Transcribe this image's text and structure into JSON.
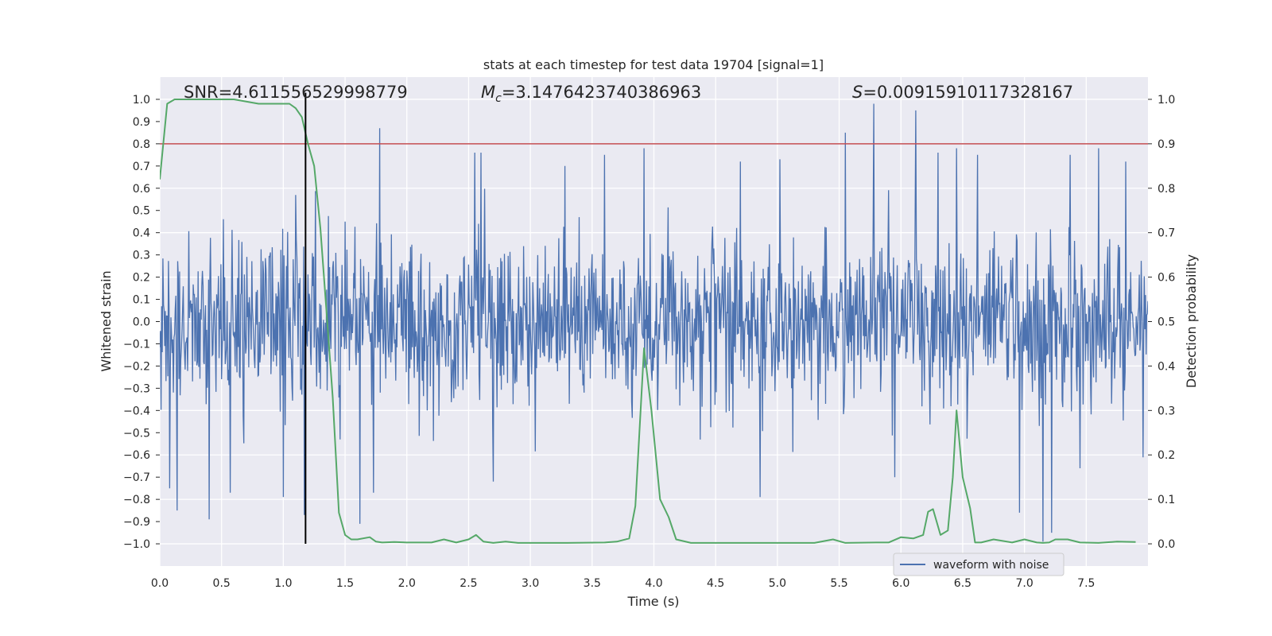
{
  "chart_data": {
    "type": "line",
    "title": "stats at each timestep for test data 19704 [signal=1]",
    "xlabel": "Time (s)",
    "ylabel": "Whitened strain",
    "y2label": "Detection probability",
    "xlim": [
      0.0,
      8.0
    ],
    "ylim": [
      -1.1,
      1.1
    ],
    "y2lim": [
      -0.05,
      1.05
    ],
    "x_ticks": [
      0.0,
      0.5,
      1.0,
      1.5,
      2.0,
      2.5,
      3.0,
      3.5,
      4.0,
      4.5,
      5.0,
      5.5,
      6.0,
      6.5,
      7.0,
      7.5
    ],
    "x_tick_labels": [
      "0.0",
      "0.5",
      "1.0",
      "1.5",
      "2.0",
      "2.5",
      "3.0",
      "3.5",
      "4.0",
      "4.5",
      "5.0",
      "5.5",
      "6.0",
      "6.5",
      "7.0",
      "7.5"
    ],
    "y_ticks": [
      1.0,
      0.9,
      0.8,
      0.7,
      0.6,
      0.5,
      0.4,
      0.3,
      0.2,
      0.1,
      0.0,
      -0.1,
      -0.2,
      -0.3,
      -0.4,
      -0.5,
      -0.6,
      -0.7,
      -0.8,
      -0.9,
      -1.0
    ],
    "y_tick_labels": [
      "1.0",
      "0.9",
      "0.8",
      "0.7",
      "0.6",
      "0.5",
      "0.4",
      "0.3",
      "0.2",
      "0.1",
      "0.0",
      "−0.1",
      "−0.2",
      "−0.3",
      "−0.4",
      "−0.5",
      "−0.6",
      "−0.7",
      "−0.8",
      "−0.9",
      "−1.0"
    ],
    "y2_ticks": [
      0.0,
      0.1,
      0.2,
      0.3,
      0.4,
      0.5,
      0.6,
      0.7,
      0.8,
      0.9,
      1.0
    ],
    "y2_tick_labels": [
      "0.0",
      "0.1",
      "0.2",
      "0.3",
      "0.4",
      "0.5",
      "0.6",
      "0.7",
      "0.8",
      "0.9",
      "1.0"
    ],
    "annotations": {
      "snr": "SNR=4.611556529998779",
      "mc_symbol": "M",
      "mc_sub": "c",
      "mc_value": "=3.1476423740386963",
      "s_symbol": "S",
      "s_value": "=0.00915910117328167"
    },
    "threshold": {
      "value": 0.9,
      "axis": "y2",
      "color": "#c44e52"
    },
    "marker_line": {
      "x": 1.18,
      "color": "#000000"
    },
    "waveform": {
      "name": "waveform with noise",
      "color": "#4c72b0",
      "dt": 0.005,
      "sigma": 0.18,
      "spikes": [
        [
          0.08,
          -0.75
        ],
        [
          0.14,
          -0.85
        ],
        [
          0.4,
          -0.89
        ],
        [
          0.57,
          -0.77
        ],
        [
          1.0,
          -0.79
        ],
        [
          1.17,
          -0.87
        ],
        [
          1.1,
          0.57
        ],
        [
          1.78,
          0.87
        ],
        [
          1.62,
          -0.91
        ],
        [
          1.73,
          -0.77
        ],
        [
          2.55,
          0.76
        ],
        [
          2.6,
          0.76
        ],
        [
          2.7,
          -0.72
        ],
        [
          3.28,
          0.7
        ],
        [
          3.6,
          0.75
        ],
        [
          3.92,
          0.78
        ],
        [
          4.7,
          0.72
        ],
        [
          4.86,
          -0.79
        ],
        [
          5.02,
          0.73
        ],
        [
          5.55,
          0.85
        ],
        [
          5.78,
          0.98
        ],
        [
          5.95,
          -0.7
        ],
        [
          6.12,
          0.95
        ],
        [
          6.3,
          0.76
        ],
        [
          6.45,
          0.78
        ],
        [
          6.96,
          -0.86
        ],
        [
          7.15,
          -0.99
        ],
        [
          7.22,
          -0.95
        ],
        [
          7.37,
          0.75
        ],
        [
          7.6,
          0.78
        ],
        [
          7.82,
          0.72
        ],
        [
          6.62,
          0.75
        ]
      ]
    },
    "probability": {
      "name": "detection probability",
      "color": "#55a868",
      "x": [
        0.0,
        0.06,
        0.12,
        0.2,
        0.4,
        0.6,
        0.8,
        1.0,
        1.05,
        1.1,
        1.15,
        1.2,
        1.25,
        1.3,
        1.35,
        1.4,
        1.45,
        1.5,
        1.55,
        1.6,
        1.7,
        1.75,
        1.8,
        1.9,
        2.0,
        2.2,
        2.3,
        2.4,
        2.5,
        2.56,
        2.62,
        2.7,
        2.8,
        2.9,
        3.0,
        3.3,
        3.6,
        3.7,
        3.8,
        3.85,
        3.92,
        3.98,
        4.05,
        4.12,
        4.18,
        4.3,
        4.6,
        5.0,
        5.3,
        5.45,
        5.55,
        5.8,
        5.9,
        6.0,
        6.1,
        6.18,
        6.22,
        6.26,
        6.32,
        6.38,
        6.42,
        6.45,
        6.5,
        6.56,
        6.6,
        6.65,
        6.75,
        6.9,
        7.0,
        7.1,
        7.15,
        7.2,
        7.25,
        7.35,
        7.45,
        7.6,
        7.75,
        7.9
      ],
      "values": [
        0.82,
        0.99,
        1.0,
        1.0,
        1.0,
        1.0,
        0.99,
        0.99,
        0.99,
        0.98,
        0.96,
        0.9,
        0.85,
        0.71,
        0.52,
        0.33,
        0.07,
        0.02,
        0.01,
        0.01,
        0.015,
        0.005,
        0.003,
        0.004,
        0.003,
        0.003,
        0.01,
        0.003,
        0.01,
        0.02,
        0.005,
        0.002,
        0.005,
        0.002,
        0.002,
        0.002,
        0.003,
        0.005,
        0.012,
        0.085,
        0.44,
        0.3,
        0.1,
        0.06,
        0.01,
        0.002,
        0.002,
        0.002,
        0.002,
        0.01,
        0.002,
        0.003,
        0.003,
        0.015,
        0.012,
        0.02,
        0.072,
        0.078,
        0.02,
        0.03,
        0.15,
        0.3,
        0.15,
        0.08,
        0.003,
        0.003,
        0.01,
        0.003,
        0.01,
        0.003,
        0.002,
        0.003,
        0.01,
        0.01,
        0.003,
        0.002,
        0.005,
        0.004
      ]
    },
    "legend": {
      "entries": [
        "waveform with noise"
      ],
      "location": "lower right"
    },
    "grid": true
  }
}
